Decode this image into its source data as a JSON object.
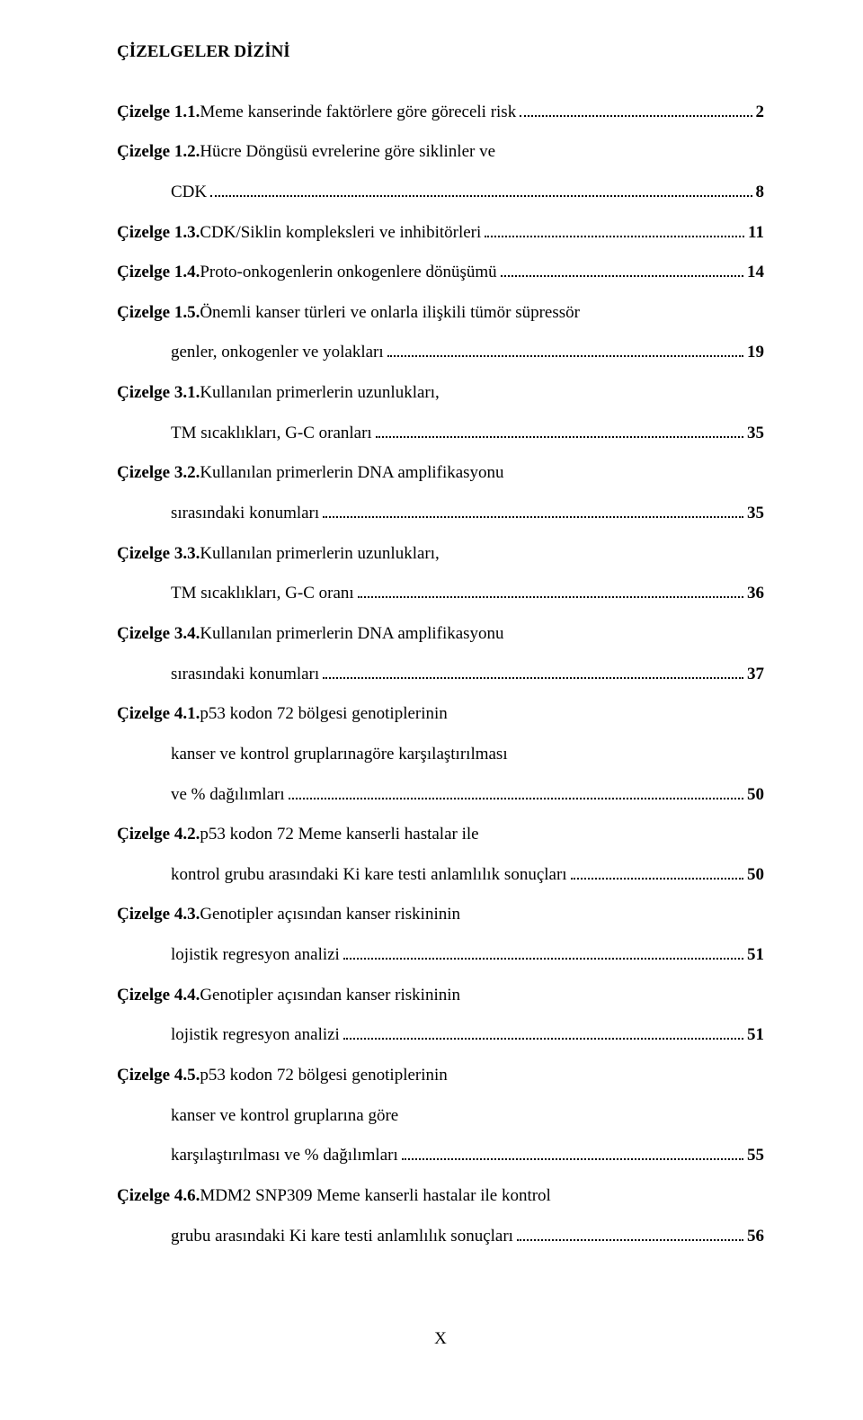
{
  "title": "ÇİZELGELER DİZİNİ",
  "footer": "X",
  "entries": [
    {
      "label": "Çizelge 1.1.",
      "lines": [
        {
          "text": " Meme kanserinde faktörlere göre göreceli risk",
          "page": "2"
        }
      ]
    },
    {
      "label": "Çizelge 1.2.",
      "lines": [
        {
          "text": " Hücre Döngüsü evrelerine göre siklinler ve"
        },
        {
          "text": "CDK",
          "indent": true,
          "page": "8"
        }
      ]
    },
    {
      "label": "Çizelge 1.3.",
      "lines": [
        {
          "text": " CDK/Siklin kompleksleri ve inhibitörleri",
          "page": "11"
        }
      ]
    },
    {
      "label": "Çizelge 1.4.",
      "lines": [
        {
          "text": " Proto-onkogenlerin onkogenlere dönüşümü",
          "page": "14"
        }
      ]
    },
    {
      "label": "Çizelge 1.5.",
      "lines": [
        {
          "text": " Önemli kanser türleri ve onlarla ilişkili tümör süpressör"
        },
        {
          "text": "genler, onkogenler ve yolakları",
          "indent": true,
          "page": "19"
        }
      ]
    },
    {
      "label": "Çizelge 3.1.",
      "lines": [
        {
          "text": " Kullanılan primerlerin uzunlukları,"
        },
        {
          "text": "TM sıcaklıkları, G-C oranları",
          "indent": true,
          "page": "35"
        }
      ]
    },
    {
      "label": "Çizelge 3.2.",
      "lines": [
        {
          "text": " Kullanılan primerlerin DNA amplifikasyonu"
        },
        {
          "text": "sırasındaki konumları",
          "indent": true,
          "page": "35"
        }
      ]
    },
    {
      "label": "Çizelge 3.3.",
      "lines": [
        {
          "text": " Kullanılan primerlerin uzunlukları,"
        },
        {
          "text": "TM sıcaklıkları, G-C oranı",
          "indent": true,
          "page": "36"
        }
      ]
    },
    {
      "label": "Çizelge 3.4.",
      "lines": [
        {
          "text": " Kullanılan primerlerin DNA amplifikasyonu"
        },
        {
          "text": "sırasındaki konumları",
          "indent": true,
          "page": "37"
        }
      ]
    },
    {
      "label": "Çizelge 4.1.",
      "lines": [
        {
          "text": " p53 kodon 72 bölgesi genotiplerinin"
        },
        {
          "text": "kanser ve kontrol gruplarınagöre karşılaştırılması",
          "indent": true
        },
        {
          "text": "ve % dağılımları",
          "indent": true,
          "page": "50"
        }
      ]
    },
    {
      "label": "Çizelge 4.2.",
      "lines": [
        {
          "text": " p53 kodon 72 Meme kanserli hastalar ile"
        },
        {
          "text": "kontrol grubu arasındaki Ki kare testi anlamlılık sonuçları",
          "indent": true,
          "page": "50"
        }
      ]
    },
    {
      "label": "Çizelge 4.3.",
      "lines": [
        {
          "text": " Genotipler açısından kanser riskininin"
        },
        {
          "text": " lojistik regresyon analizi",
          "indent": true,
          "page": "51"
        }
      ]
    },
    {
      "label": "Çizelge 4.4.",
      "lines": [
        {
          "text": " Genotipler açısından kanser riskininin"
        },
        {
          "text": " lojistik regresyon analizi",
          "indent": true,
          "page": "51"
        }
      ]
    },
    {
      "label": "Çizelge 4.5.",
      "lines": [
        {
          "text": " p53 kodon 72 bölgesi genotiplerinin"
        },
        {
          "text": "kanser ve kontrol gruplarına göre",
          "indent": true
        },
        {
          "text": "karşılaştırılması ve % dağılımları",
          "indent": true,
          "page": "55"
        }
      ]
    },
    {
      "label": "Çizelge 4.6.",
      "lines": [
        {
          "text": " MDM2 SNP309 Meme kanserli hastalar ile kontrol"
        },
        {
          "text": "grubu arasındaki Ki kare testi anlamlılık sonuçları",
          "indent": true,
          "page": "56"
        }
      ]
    }
  ]
}
